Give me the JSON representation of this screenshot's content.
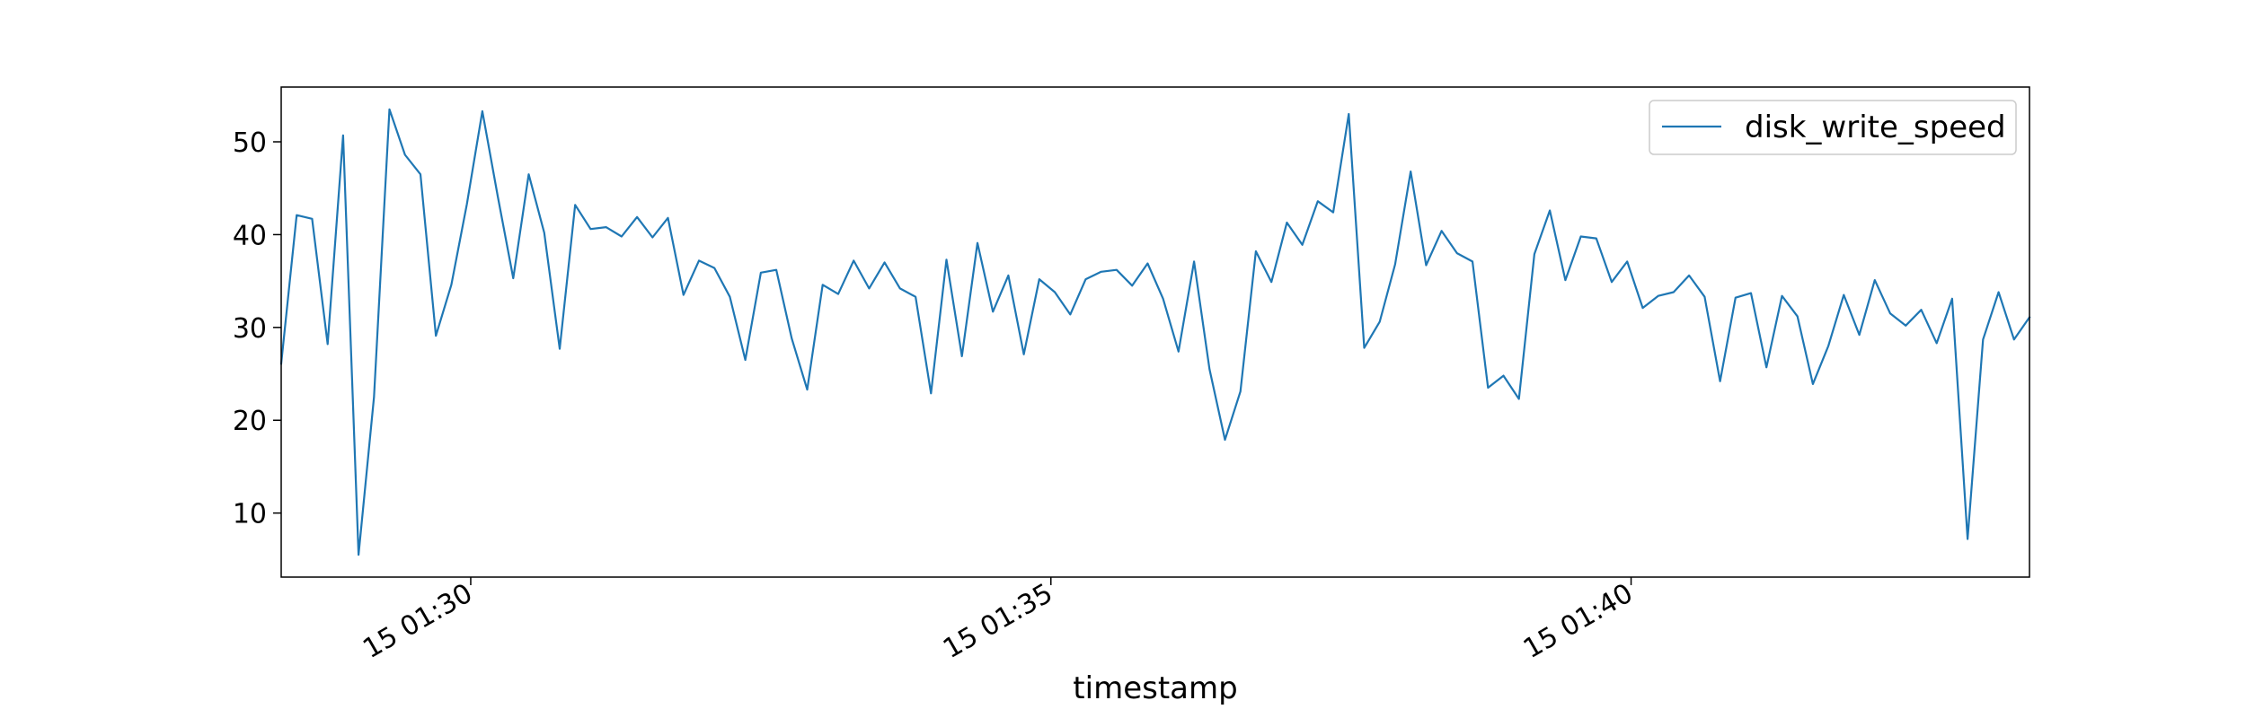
{
  "chart_data": {
    "type": "line",
    "xlabel": "timestamp",
    "ylabel": "",
    "x_start": "15 01:28:22",
    "x_step_seconds": 8,
    "x_ticks": [
      {
        "t_seconds": 98,
        "label": "15 01:30"
      },
      {
        "t_seconds": 398,
        "label": "15 01:35"
      },
      {
        "t_seconds": 698,
        "label": "15 01:40"
      }
    ],
    "xlim_seconds": [
      0,
      904
    ],
    "y_ticks": [
      10,
      20,
      30,
      40,
      50
    ],
    "ylim": [
      3.1,
      55.9
    ],
    "grid": false,
    "legend_position": "top-right",
    "series": [
      {
        "name": "disk_write_speed",
        "color": "#1f77b4",
        "values": [
          26.1,
          42.1,
          41.7,
          28.2,
          50.7,
          5.5,
          22.5,
          53.5,
          48.6,
          46.5,
          29.1,
          34.6,
          43.3,
          53.3,
          44.1,
          35.3,
          46.5,
          40.2,
          27.7,
          43.2,
          40.6,
          40.8,
          39.8,
          41.9,
          39.7,
          41.8,
          33.5,
          37.2,
          36.4,
          33.3,
          26.5,
          35.9,
          36.2,
          28.8,
          23.3,
          34.6,
          33.6,
          37.2,
          34.2,
          37.0,
          34.2,
          33.3,
          22.9,
          37.3,
          26.9,
          39.1,
          31.7,
          35.6,
          27.1,
          35.2,
          33.8,
          31.4,
          35.2,
          36.0,
          36.2,
          34.5,
          36.9,
          33.1,
          27.4,
          37.1,
          25.5,
          17.9,
          23.1,
          38.2,
          34.9,
          41.3,
          38.9,
          43.6,
          42.4,
          53.0,
          27.8,
          30.6,
          36.8,
          46.8,
          36.7,
          40.4,
          38.0,
          37.1,
          23.5,
          24.8,
          22.3,
          37.9,
          42.6,
          35.1,
          39.8,
          39.6,
          34.9,
          37.1,
          32.1,
          33.4,
          33.8,
          35.6,
          33.3,
          24.2,
          33.2,
          33.7,
          25.7,
          33.4,
          31.2,
          23.9,
          28.0,
          33.5,
          29.2,
          35.1,
          31.5,
          30.2,
          31.9,
          28.3,
          33.1,
          7.2,
          28.7,
          33.8,
          28.7,
          31.1
        ]
      }
    ]
  }
}
